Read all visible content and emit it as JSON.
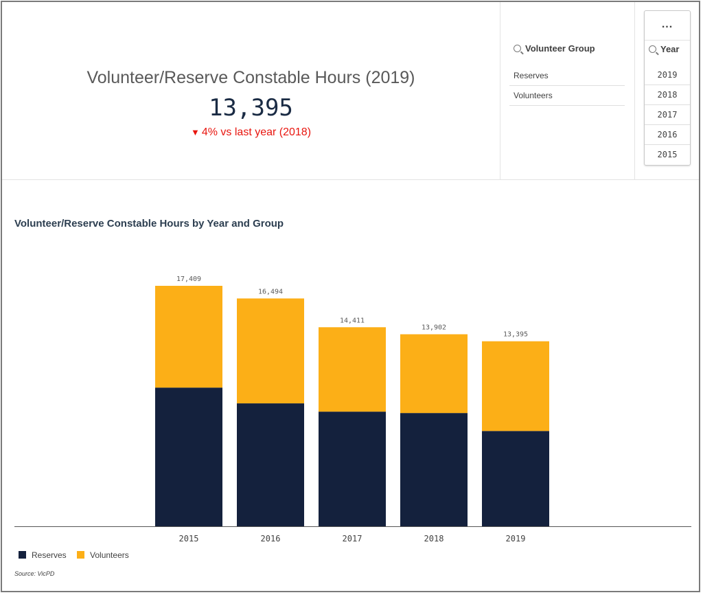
{
  "kpi": {
    "title": "Volunteer/Reserve Constable Hours (2019)",
    "value": "13,395",
    "delta_arrow": "▼",
    "delta_text": "4% vs last year (2018)",
    "delta_color": "#e8150e"
  },
  "filters": {
    "group": {
      "title": "Volunteer Group",
      "icon": "search-icon",
      "items": [
        "Reserves",
        "Volunteers"
      ]
    },
    "year": {
      "more_label": "...",
      "title": "Year",
      "icon": "search-icon",
      "items": [
        "2019",
        "2018",
        "2017",
        "2016",
        "2015"
      ]
    }
  },
  "chart_data": {
    "type": "bar",
    "stacked": true,
    "title": "Volunteer/Reserve Constable Hours by Year and Group",
    "categories": [
      "2015",
      "2016",
      "2017",
      "2018",
      "2019"
    ],
    "series": [
      {
        "name": "Reserves",
        "color": "#14213d",
        "values": [
          10040,
          8900,
          8300,
          8200,
          6900
        ]
      },
      {
        "name": "Volunteers",
        "color": "#fcaf17",
        "values": [
          7369,
          7594,
          6111,
          5702,
          6495
        ]
      }
    ],
    "totals": [
      "17,409",
      "16,494",
      "14,411",
      "13,902",
      "13,395"
    ],
    "ylim": [
      0,
      17409
    ],
    "grid": false,
    "legend": "bottom-left",
    "source": "Source: VicPD"
  }
}
